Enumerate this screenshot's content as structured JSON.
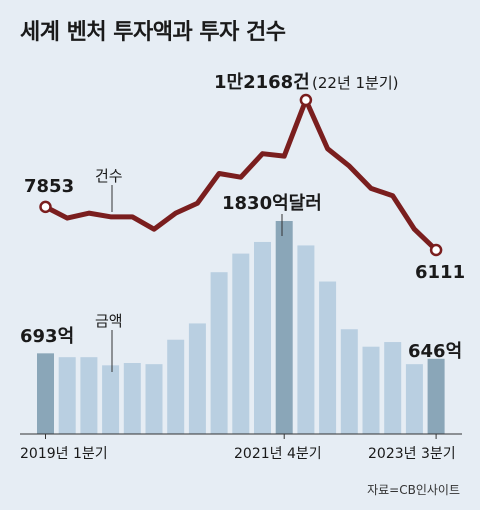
{
  "title": "세계 벤처 투자액과 투자 건수",
  "source": "자료=CB인사이트",
  "labels": {
    "count_series": "건수",
    "amount_series": "금액",
    "count_peak": "1만2168건",
    "count_peak_note": "(22년 1분기)",
    "count_start": "7853",
    "count_end": "6111",
    "amount_peak": "1830억달러",
    "amount_start": "693억",
    "amount_end": "646억"
  },
  "colors": {
    "line": "#7a1e1e",
    "bar": "#b9cfe1",
    "bar_highlight": "#8aa6b8",
    "background": "#e6edf4"
  },
  "chart_data": {
    "type": "bar+line",
    "x_tick_labels": [
      "2019년 1분기",
      "2021년 4분기",
      "2023년 3분기"
    ],
    "categories": [
      "2019 Q1",
      "2019 Q2",
      "2019 Q3",
      "2019 Q4",
      "2020 Q1",
      "2020 Q2",
      "2020 Q3",
      "2020 Q4",
      "2021 Q1",
      "2021 Q2",
      "2021 Q3",
      "2021 Q4",
      "2022 Q1",
      "2022 Q2",
      "2022 Q3",
      "2022 Q4",
      "2023 Q1",
      "2023 Q2",
      "2023 Q3"
    ],
    "series": [
      {
        "name": "금액",
        "type": "bar",
        "unit": "억달러",
        "values": [
          693,
          660,
          660,
          590,
          610,
          600,
          810,
          950,
          1390,
          1550,
          1650,
          1830,
          1620,
          1310,
          900,
          750,
          790,
          600,
          646
        ]
      },
      {
        "name": "건수",
        "type": "line",
        "unit": "건",
        "values": [
          7853,
          7400,
          7600,
          7450,
          7450,
          6950,
          7600,
          8000,
          9200,
          9050,
          10000,
          9900,
          12168,
          10200,
          9500,
          8600,
          8300,
          6950,
          6111
        ]
      }
    ],
    "highlighted_bars": [
      0,
      11,
      18
    ]
  }
}
